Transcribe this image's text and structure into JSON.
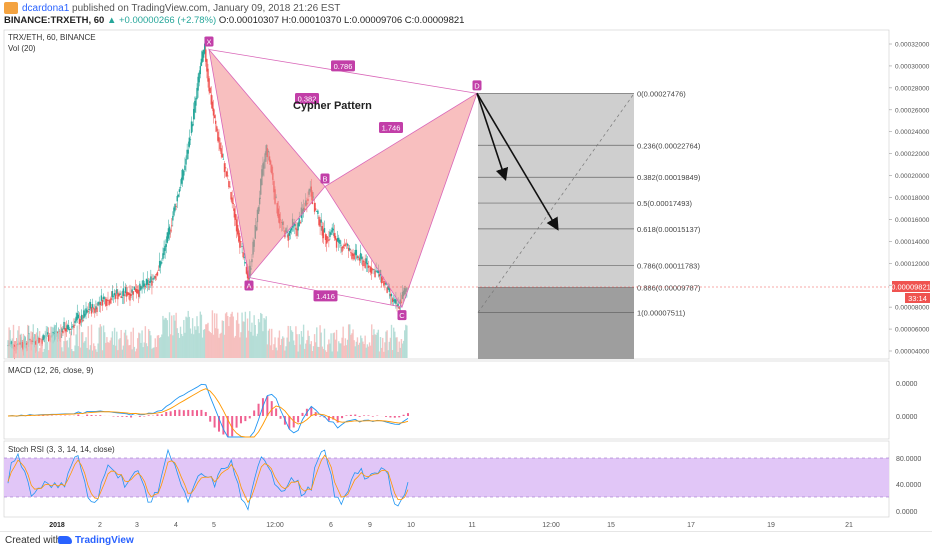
{
  "header": {
    "user": "dcardona1",
    "published": "published on TradingView.com, January 09, 2018 21:26 EST",
    "symbol": "BINANCE:TRXETH, 60",
    "change": "▲ +0.00000266 (+2.78%)",
    "ohlc": "O:0.00010307 H:0.00010370 L:0.00009706 C:0.00009821"
  },
  "legend": {
    "pair": "TRX/ETH, 60, BINANCE",
    "vol": "Vol (20)",
    "macd": "MACD (12, 26, close, 9)",
    "stoch": "Stoch RSI (3, 3, 14, 14, close)"
  },
  "colors": {
    "pattern_fill": "#f28b8b",
    "pattern_line": "#d966b8",
    "up": "#26a69a",
    "down": "#ef5350",
    "price_badge": "#ef5350",
    "rsi_band": "#e1c6f7",
    "macd_line": "#2196f3",
    "signal_line": "#ff9800",
    "hist": "#e91e63"
  },
  "chart_data": {
    "type": "candlestick",
    "title": "Cypher Pattern",
    "current_price": "0.00009821",
    "countdown": "33:14",
    "price_axis": [
      "0.00032000",
      "0.00030000",
      "0.00028000",
      "0.00026000",
      "0.00024000",
      "0.00022000",
      "0.00020000",
      "0.00018000",
      "0.00016000",
      "0.00014000",
      "0.00012000",
      "0.00010000",
      "0.00008000",
      "0.00006000",
      "0.00004000"
    ],
    "macd_axis": [
      "0.0000",
      "0.0000"
    ],
    "rsi_axis": [
      "80.0000",
      "40.0000",
      "0.0000"
    ],
    "x_ticks": [
      "2018",
      "2",
      "3",
      "4",
      "5",
      "12:00",
      "6",
      "9",
      "10",
      "11",
      "12:00",
      "15",
      "17",
      "19",
      "21"
    ],
    "pattern_points": [
      {
        "label": "X",
        "price": 0.000315
      },
      {
        "label": "A",
        "price": 0.000107
      },
      {
        "label": "B",
        "price": 0.00019
      },
      {
        "label": "C",
        "price": 8e-05
      },
      {
        "label": "D",
        "price": 0.000275
      }
    ],
    "pattern_ratios": [
      "0.382",
      "0.786",
      "1.746",
      "1.416"
    ],
    "fib_levels": [
      {
        "label": "0(0.00027476)",
        "value": 0.00027476
      },
      {
        "label": "0.236(0.00022764)",
        "value": 0.00022764
      },
      {
        "label": "0.382(0.00019849)",
        "value": 0.00019849
      },
      {
        "label": "0.5(0.00017493)",
        "value": 0.00017493
      },
      {
        "label": "0.618(0.00015137)",
        "value": 0.00015137
      },
      {
        "label": "0.786(0.00011783)",
        "value": 0.00011783
      },
      {
        "label": "0.886(0.00009787)",
        "value": 9.787e-05
      },
      {
        "label": "1(0.00007511)",
        "value": 7.511e-05
      }
    ],
    "price_path": [
      4.5e-05,
      4.7e-05,
      4.4e-05,
      4.9e-05,
      4.6e-05,
      5.1e-05,
      4.8e-05,
      5.2e-05,
      5e-05,
      5.5e-05,
      5.3e-05,
      5.8e-05,
      5.6e-05,
      6.1e-05,
      5.9e-05,
      6.4e-05,
      7e-05,
      6.8e-05,
      7.5e-05,
      8e-05,
      7.8e-05,
      8.5e-05,
      8.8e-05,
      8.6e-05,
      9e-05,
      9.3e-05,
      8.9e-05,
      9.4e-05,
      9.2e-05,
      9.7e-05,
      9.5e-05,
      9.9e-05,
      0.000101,
      0.000105,
      0.000112,
      0.00012,
      0.000135,
      0.00015,
      0.000168,
      0.000185,
      0.0002,
      0.00022,
      0.000245,
      0.00027,
      0.0003,
      0.000315,
      0.00028,
      0.000255,
      0.000235,
      0.000215,
      0.0002,
      0.00018,
      0.00016,
      0.00014,
      0.00012,
      0.000107,
      0.000135,
      0.000165,
      0.0002,
      0.000225,
      0.00021,
      0.00018,
      0.00016,
      0.00015,
      0.000145,
      0.000155,
      0.00015,
      0.000165,
      0.000175,
      0.00019,
      0.00017,
      0.00016,
      0.000148,
      0.000142,
      0.00015,
      0.00014,
      0.000135,
      0.000138,
      0.00013,
      0.000128,
      0.000125,
      0.000122,
      0.000118,
      0.000115,
      0.000112,
      0.000108,
      0.0001,
      9.2e-05,
      8.4e-05,
      8e-05,
      9e-05,
      9.8e-05
    ]
  },
  "footer": {
    "created": "Created with",
    "brand": "TradingView"
  }
}
